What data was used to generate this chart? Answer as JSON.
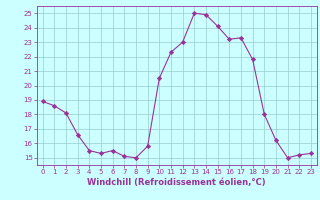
{
  "x": [
    0,
    1,
    2,
    3,
    4,
    5,
    6,
    7,
    8,
    9,
    10,
    11,
    12,
    13,
    14,
    15,
    16,
    17,
    18,
    19,
    20,
    21,
    22,
    23
  ],
  "y": [
    18.9,
    18.6,
    18.1,
    16.6,
    15.5,
    15.3,
    15.5,
    15.1,
    15.0,
    15.8,
    20.5,
    22.3,
    23.0,
    25.0,
    24.9,
    24.1,
    23.2,
    23.3,
    21.8,
    18.0,
    16.2,
    15.0,
    15.2,
    15.3
  ],
  "line_color": "#993399",
  "marker": "D",
  "marker_size": 2.2,
  "bg_color": "#ccffff",
  "grid_color": "#99cccc",
  "xlabel": "Windchill (Refroidissement éolien,°C)",
  "xlim": [
    -0.5,
    23.5
  ],
  "ylim": [
    14.5,
    25.5
  ],
  "yticks": [
    15,
    16,
    17,
    18,
    19,
    20,
    21,
    22,
    23,
    24,
    25
  ],
  "xticks": [
    0,
    1,
    2,
    3,
    4,
    5,
    6,
    7,
    8,
    9,
    10,
    11,
    12,
    13,
    14,
    15,
    16,
    17,
    18,
    19,
    20,
    21,
    22,
    23
  ],
  "tick_color": "#993399",
  "label_color": "#993399",
  "tick_fontsize": 5.0,
  "xlabel_fontsize": 6.0
}
